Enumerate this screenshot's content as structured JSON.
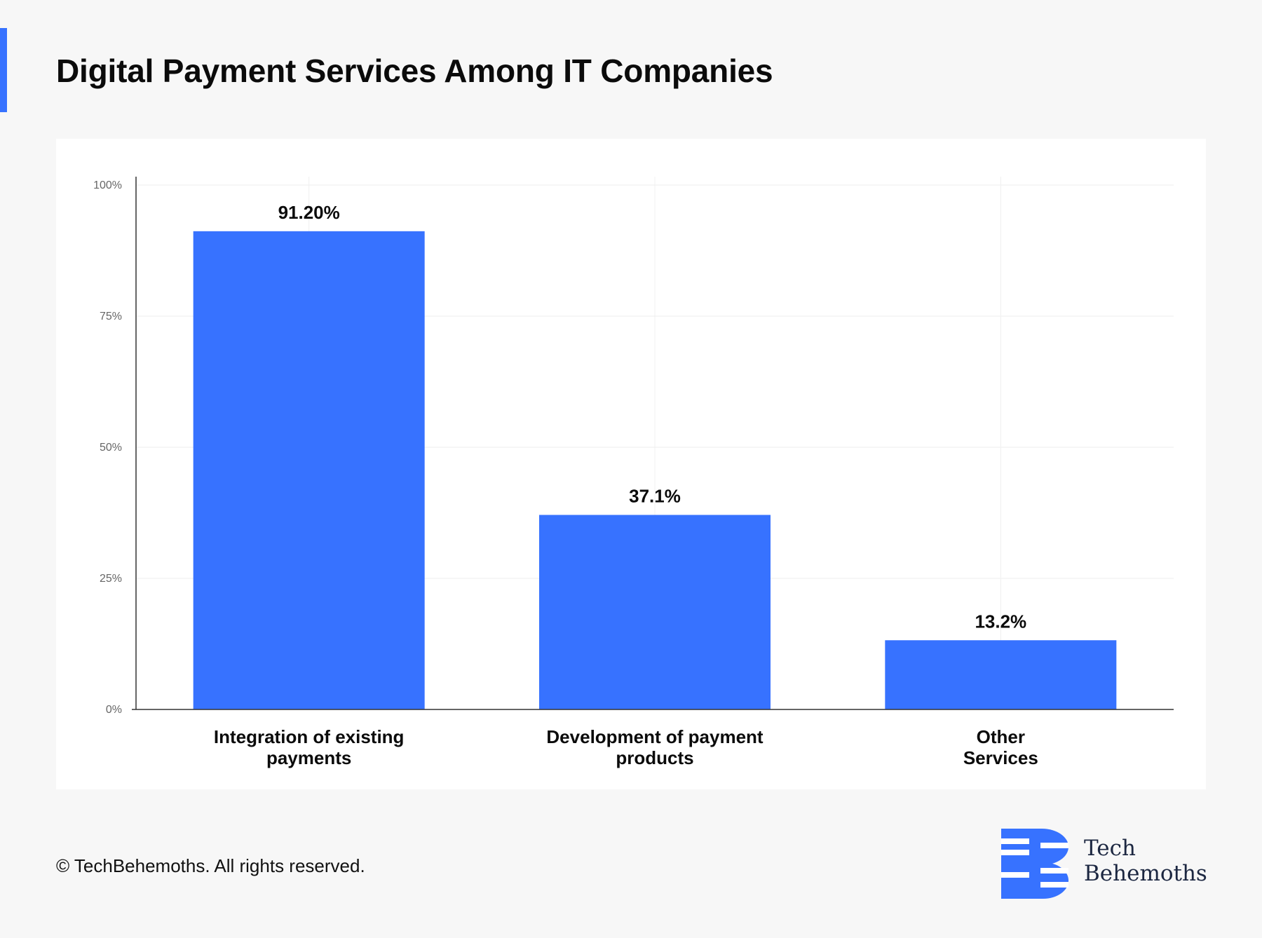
{
  "title": "Digital Payment Services Among IT Companies",
  "footer": "© TechBehemoths. All rights reserved.",
  "logo": {
    "line1": "Tech",
    "line2": "Behemoths",
    "icon": "techbehemoths-logo-icon"
  },
  "colors": {
    "accent": "#3772ff",
    "bar": "#3772ff",
    "text": "#0b0b0b",
    "axis_tick_text": "#666666",
    "logo_text": "#1c2741"
  },
  "chart_data": {
    "type": "bar",
    "title": "Digital Payment Services Among IT Companies",
    "categories": [
      [
        "Integration of existing",
        "payments"
      ],
      [
        "Development of payment",
        "products"
      ],
      [
        "Other",
        "Services"
      ]
    ],
    "values": [
      91.2,
      37.1,
      13.2
    ],
    "data_labels": [
      "91.20%",
      "37.1%",
      "13.2%"
    ],
    "ylim": [
      0,
      100
    ],
    "yticks": [
      0,
      25,
      50,
      75,
      100
    ],
    "ytick_labels": [
      "0%",
      "25%",
      "50%",
      "75%",
      "100%"
    ],
    "xlabel": "",
    "ylabel": "",
    "grid": true,
    "legend": "none"
  }
}
